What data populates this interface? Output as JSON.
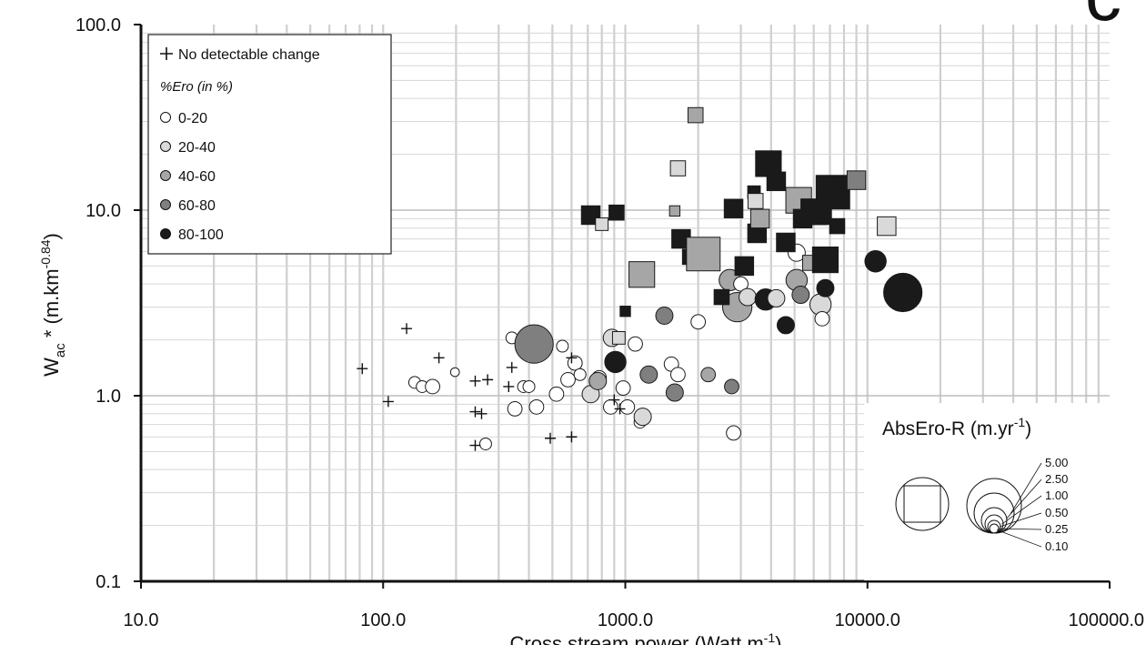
{
  "chart_data": {
    "type": "scatter",
    "title": "",
    "panel_label": "c",
    "xlabel": "Cross stream power (Watt m",
    "xlabel_sup": "-1",
    "xlabel_end": ")",
    "ylabel": "W",
    "ylabel_sub": "ac",
    "ylabel_mid": " * (m.km",
    "ylabel_sup": "-0.84",
    "ylabel_end": ")",
    "x_scale": "log",
    "y_scale": "log",
    "xlim": [
      10,
      100000
    ],
    "ylim": [
      0.1,
      100
    ],
    "x_ticks": [
      "10.0",
      "100.0",
      "1000.0",
      "10000.0",
      "100000.0"
    ],
    "y_ticks": [
      "0.1",
      "1.0",
      "10.0",
      "100.0"
    ],
    "grid": true,
    "legend": {
      "placement": "top-left",
      "no_change_label": "No detectable change",
      "group_title": "%Ero (in %)",
      "classes": [
        {
          "label": "0-20",
          "color": "#ffffff"
        },
        {
          "label": "20-40",
          "color": "#d9d9d9"
        },
        {
          "label": "40-60",
          "color": "#a6a6a6"
        },
        {
          "label": "60-80",
          "color": "#7f7f7f"
        },
        {
          "label": "80-100",
          "color": "#1a1a1a"
        }
      ]
    },
    "size_legend": {
      "placement": "bottom-right",
      "title": "AbsEro-R (m.yr",
      "title_sup": "-1",
      "title_end": ")",
      "values": [
        "5.00",
        "2.50",
        "1.00",
        "0.50",
        "0.25",
        "0.10"
      ]
    },
    "series": [
      {
        "name": "No detectable change",
        "marker": "plus",
        "points": [
          [
            82,
            1.4
          ],
          [
            105,
            0.93
          ],
          [
            125,
            2.3
          ],
          [
            170,
            1.6
          ],
          [
            240,
            1.2
          ],
          [
            240,
            0.82
          ],
          [
            255,
            0.8
          ],
          [
            270,
            1.22
          ],
          [
            330,
            1.12
          ],
          [
            340,
            1.42
          ],
          [
            600,
            1.6
          ],
          [
            900,
            0.95
          ],
          [
            950,
            0.85
          ],
          [
            240,
            0.54
          ],
          [
            490,
            0.59
          ],
          [
            600,
            0.6
          ]
        ]
      },
      {
        "name": "Circles",
        "marker": "circle",
        "points": [
          {
            "x": 135,
            "y": 1.18,
            "v": 0.1,
            "c": 0
          },
          {
            "x": 145,
            "y": 1.12,
            "v": 0.1,
            "c": 0
          },
          {
            "x": 160,
            "y": 1.12,
            "v": 0.25,
            "c": 0
          },
          {
            "x": 265,
            "y": 0.55,
            "v": 0.1,
            "c": 0
          },
          {
            "x": 340,
            "y": 2.05,
            "v": 0.1,
            "c": 0
          },
          {
            "x": 350,
            "y": 0.85,
            "v": 0.25,
            "c": 0
          },
          {
            "x": 380,
            "y": 1.12,
            "v": 0.1,
            "c": 0
          },
          {
            "x": 400,
            "y": 1.12,
            "v": 0.1,
            "c": 0
          },
          {
            "x": 430,
            "y": 0.87,
            "v": 0.25,
            "c": 0
          },
          {
            "x": 520,
            "y": 1.02,
            "v": 0.25,
            "c": 0
          },
          {
            "x": 550,
            "y": 1.85,
            "v": 0.1,
            "c": 0
          },
          {
            "x": 580,
            "y": 1.22,
            "v": 0.25,
            "c": 0
          },
          {
            "x": 620,
            "y": 1.5,
            "v": 0.25,
            "c": 0
          },
          {
            "x": 650,
            "y": 1.3,
            "v": 0.1,
            "c": 0
          },
          {
            "x": 720,
            "y": 1.02,
            "v": 0.5,
            "c": 1
          },
          {
            "x": 780,
            "y": 1.25,
            "v": 0.25,
            "c": 0
          },
          {
            "x": 770,
            "y": 1.2,
            "v": 0.5,
            "c": 2
          },
          {
            "x": 880,
            "y": 2.05,
            "v": 0.5,
            "c": 1
          },
          {
            "x": 870,
            "y": 0.87,
            "v": 0.25,
            "c": 0
          },
          {
            "x": 980,
            "y": 1.1,
            "v": 0.25,
            "c": 0
          },
          {
            "x": 1020,
            "y": 0.87,
            "v": 0.25,
            "c": 0
          },
          {
            "x": 1100,
            "y": 1.9,
            "v": 0.25,
            "c": 0
          },
          {
            "x": 1150,
            "y": 0.72,
            "v": 0.1,
            "c": 0
          },
          {
            "x": 1180,
            "y": 0.77,
            "v": 0.5,
            "c": 1
          },
          {
            "x": 1250,
            "y": 1.3,
            "v": 0.5,
            "c": 3
          },
          {
            "x": 1450,
            "y": 2.7,
            "v": 0.5,
            "c": 3
          },
          {
            "x": 1550,
            "y": 1.48,
            "v": 0.25,
            "c": 0
          },
          {
            "x": 1600,
            "y": 1.04,
            "v": 0.5,
            "c": 3
          },
          {
            "x": 1650,
            "y": 1.3,
            "v": 0.25,
            "c": 0
          },
          {
            "x": 2000,
            "y": 2.5,
            "v": 0.25,
            "c": 0
          },
          {
            "x": 2200,
            "y": 1.3,
            "v": 0.25,
            "c": 2
          },
          {
            "x": 2700,
            "y": 4.2,
            "v": 1,
            "c": 2
          },
          {
            "x": 2750,
            "y": 1.12,
            "v": 0.25,
            "c": 3
          },
          {
            "x": 2800,
            "y": 0.63,
            "v": 0.25,
            "c": 0
          },
          {
            "x": 2900,
            "y": 3.0,
            "v": 2.5,
            "c": 2
          },
          {
            "x": 3000,
            "y": 4.0,
            "v": 0.25,
            "c": 0
          },
          {
            "x": 3200,
            "y": 3.4,
            "v": 0.5,
            "c": 1
          },
          {
            "x": 3800,
            "y": 3.3,
            "v": 1,
            "c": 4
          },
          {
            "x": 4200,
            "y": 3.35,
            "v": 0.5,
            "c": 1
          },
          {
            "x": 4600,
            "y": 2.4,
            "v": 0.5,
            "c": 4
          },
          {
            "x": 5100,
            "y": 5.9,
            "v": 0.5,
            "c": 0
          },
          {
            "x": 5100,
            "y": 4.2,
            "v": 1,
            "c": 2
          },
          {
            "x": 5300,
            "y": 3.5,
            "v": 0.5,
            "c": 3
          },
          {
            "x": 6400,
            "y": 3.1,
            "v": 1,
            "c": 1
          },
          {
            "x": 6500,
            "y": 2.6,
            "v": 0.25,
            "c": 0
          },
          {
            "x": 6700,
            "y": 3.8,
            "v": 0.5,
            "c": 4
          },
          {
            "x": 10800,
            "y": 5.3,
            "v": 1,
            "c": 4
          },
          {
            "x": 14000,
            "y": 3.6,
            "v": 5,
            "c": 4
          },
          {
            "x": 420,
            "y": 1.9,
            "v": 5,
            "c": 3
          },
          {
            "x": 910,
            "y": 1.52,
            "v": 1,
            "c": 4
          },
          {
            "x": 198,
            "y": 1.34,
            "v": 0.01,
            "c": 0
          }
        ]
      },
      {
        "name": "Squares",
        "marker": "square",
        "points": [
          {
            "x": 720,
            "y": 9.4,
            "v": 1,
            "c": 4
          },
          {
            "x": 800,
            "y": 8.4,
            "v": 0.25,
            "c": 1
          },
          {
            "x": 920,
            "y": 9.7,
            "v": 0.5,
            "c": 4
          },
          {
            "x": 940,
            "y": 2.05,
            "v": 0.25,
            "c": 1
          },
          {
            "x": 1000,
            "y": 2.85,
            "v": 0.1,
            "c": 4
          },
          {
            "x": 1170,
            "y": 4.5,
            "v": 2.5,
            "c": 2
          },
          {
            "x": 1600,
            "y": 9.9,
            "v": 0.1,
            "c": 2
          },
          {
            "x": 1650,
            "y": 16.8,
            "v": 0.5,
            "c": 1
          },
          {
            "x": 1700,
            "y": 7.0,
            "v": 1,
            "c": 4
          },
          {
            "x": 1850,
            "y": 5.6,
            "v": 0.5,
            "c": 4
          },
          {
            "x": 1950,
            "y": 32.5,
            "v": 0.5,
            "c": 2
          },
          {
            "x": 2100,
            "y": 5.8,
            "v": 5,
            "c": 2
          },
          {
            "x": 2500,
            "y": 3.4,
            "v": 0.5,
            "c": 4
          },
          {
            "x": 2800,
            "y": 10.2,
            "v": 1,
            "c": 4
          },
          {
            "x": 3100,
            "y": 5.0,
            "v": 1,
            "c": 4
          },
          {
            "x": 3400,
            "y": 12.5,
            "v": 0.25,
            "c": 4
          },
          {
            "x": 3450,
            "y": 11.2,
            "v": 0.5,
            "c": 1
          },
          {
            "x": 3500,
            "y": 7.5,
            "v": 1,
            "c": 4
          },
          {
            "x": 3600,
            "y": 9.0,
            "v": 1,
            "c": 2
          },
          {
            "x": 3900,
            "y": 17.8,
            "v": 2.5,
            "c": 4
          },
          {
            "x": 4200,
            "y": 14.3,
            "v": 1,
            "c": 4
          },
          {
            "x": 4600,
            "y": 6.7,
            "v": 1,
            "c": 4
          },
          {
            "x": 5200,
            "y": 11.3,
            "v": 2.5,
            "c": 2
          },
          {
            "x": 5400,
            "y": 9.0,
            "v": 1,
            "c": 4
          },
          {
            "x": 5800,
            "y": 5.2,
            "v": 0.5,
            "c": 2
          },
          {
            "x": 6000,
            "y": 9.8,
            "v": 2.5,
            "c": 4
          },
          {
            "x": 6500,
            "y": 9.4,
            "v": 1,
            "c": 4
          },
          {
            "x": 6700,
            "y": 5.4,
            "v": 2.5,
            "c": 4
          },
          {
            "x": 7200,
            "y": 12.5,
            "v": 5,
            "c": 4
          },
          {
            "x": 7500,
            "y": 8.2,
            "v": 0.5,
            "c": 4
          },
          {
            "x": 9000,
            "y": 14.5,
            "v": 1,
            "c": 3
          },
          {
            "x": 12000,
            "y": 8.2,
            "v": 1,
            "c": 1
          }
        ]
      }
    ]
  }
}
